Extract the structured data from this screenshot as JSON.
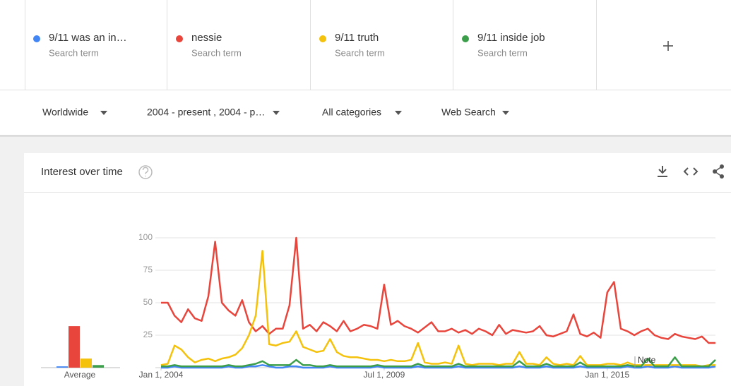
{
  "header": {
    "term_subtitle": "Search term"
  },
  "filters": [
    "Worldwide",
    "2004 - present , 2004 - p…",
    "All categories",
    "Web Search"
  ],
  "card": {
    "title": "Interest over time"
  },
  "chart_data": {
    "type": "line",
    "average_label": "Average",
    "annotation": "Note",
    "grid": true,
    "ylim": [
      0,
      100
    ],
    "yticks": [
      25,
      50,
      75,
      100
    ],
    "xlim": [
      "2004-01-01",
      "2017-09-01"
    ],
    "xticks": [
      {
        "value": "2004-01-01",
        "label": "Jan 1, 2004"
      },
      {
        "value": "2009-07-01",
        "label": "Jul 1, 2009"
      },
      {
        "value": "2015-01-01",
        "label": "Jan 1, 2015"
      }
    ],
    "x": [
      "2004-01-01",
      "2004-03-01",
      "2004-05-01",
      "2004-07-01",
      "2004-09-01",
      "2004-11-01",
      "2005-01-01",
      "2005-03-01",
      "2005-05-01",
      "2005-07-01",
      "2005-09-01",
      "2005-11-01",
      "2006-01-01",
      "2006-03-01",
      "2006-05-01",
      "2006-07-01",
      "2006-09-01",
      "2006-11-01",
      "2007-01-01",
      "2007-03-01",
      "2007-05-01",
      "2007-07-01",
      "2007-09-01",
      "2007-11-01",
      "2008-01-01",
      "2008-03-01",
      "2008-05-01",
      "2008-07-01",
      "2008-09-01",
      "2008-11-01",
      "2009-01-01",
      "2009-03-01",
      "2009-05-01",
      "2009-07-01",
      "2009-09-01",
      "2009-11-01",
      "2010-01-01",
      "2010-03-01",
      "2010-05-01",
      "2010-07-01",
      "2010-09-01",
      "2010-11-01",
      "2011-01-01",
      "2011-03-01",
      "2011-05-01",
      "2011-07-01",
      "2011-09-01",
      "2011-11-01",
      "2012-01-01",
      "2012-03-01",
      "2012-05-01",
      "2012-07-01",
      "2012-09-01",
      "2012-11-01",
      "2013-01-01",
      "2013-03-01",
      "2013-05-01",
      "2013-07-01",
      "2013-09-01",
      "2013-11-01",
      "2014-01-01",
      "2014-03-01",
      "2014-05-01",
      "2014-07-01",
      "2014-09-01",
      "2014-11-01",
      "2015-01-01",
      "2015-03-01",
      "2015-05-01",
      "2015-07-01",
      "2015-09-01",
      "2015-11-01",
      "2016-01-01",
      "2016-03-01",
      "2016-05-01",
      "2016-07-01",
      "2016-09-01",
      "2016-11-01",
      "2017-01-01",
      "2017-03-01",
      "2017-05-01",
      "2017-07-01",
      "2017-09-01"
    ],
    "series": [
      {
        "name": "9/11 was an in…",
        "color": "#4285f4",
        "average": 1,
        "values": [
          0,
          0,
          1,
          0,
          0,
          0,
          0,
          0,
          0,
          0,
          1,
          0,
          0,
          1,
          1,
          2,
          1,
          0,
          0,
          1,
          1,
          0,
          0,
          0,
          0,
          1,
          0,
          0,
          0,
          0,
          0,
          0,
          1,
          0,
          0,
          0,
          0,
          0,
          1,
          0,
          0,
          0,
          0,
          0,
          1,
          0,
          0,
          0,
          0,
          0,
          0,
          0,
          0,
          1,
          0,
          0,
          0,
          1,
          0,
          0,
          0,
          0,
          1,
          0,
          0,
          0,
          0,
          0,
          0,
          1,
          0,
          0,
          1,
          0,
          0,
          0,
          1,
          0,
          0,
          0,
          0,
          0,
          1
        ]
      },
      {
        "name": "nessie",
        "color": "#e8453c",
        "average": 32,
        "values": [
          50,
          50,
          40,
          35,
          45,
          38,
          36,
          55,
          97,
          50,
          44,
          40,
          52,
          35,
          28,
          32,
          26,
          30,
          30,
          48,
          100,
          30,
          33,
          28,
          35,
          32,
          28,
          36,
          28,
          30,
          33,
          32,
          30,
          64,
          33,
          36,
          32,
          30,
          27,
          31,
          35,
          28,
          28,
          30,
          27,
          29,
          26,
          30,
          28,
          25,
          33,
          26,
          29,
          28,
          27,
          28,
          32,
          25,
          24,
          26,
          28,
          41,
          26,
          24,
          27,
          23,
          58,
          66,
          30,
          28,
          25,
          28,
          30,
          25,
          23,
          22,
          26,
          24,
          23,
          22,
          24,
          19,
          19
        ]
      },
      {
        "name": "9/11 truth",
        "color": "#f4c20d",
        "average": 7,
        "values": [
          2,
          3,
          17,
          14,
          8,
          4,
          6,
          7,
          5,
          7,
          8,
          10,
          15,
          25,
          40,
          90,
          18,
          17,
          19,
          20,
          28,
          16,
          14,
          12,
          13,
          22,
          12,
          9,
          8,
          8,
          7,
          6,
          6,
          5,
          6,
          5,
          5,
          6,
          19,
          4,
          3,
          3,
          4,
          3,
          17,
          3,
          2,
          3,
          3,
          3,
          2,
          3,
          3,
          12,
          3,
          3,
          2,
          8,
          3,
          2,
          3,
          2,
          9,
          2,
          2,
          2,
          3,
          3,
          2,
          4,
          2,
          2,
          2,
          2,
          2,
          2,
          2,
          2,
          2,
          2,
          1,
          2,
          2
        ]
      },
      {
        "name": "9/11 inside job",
        "color": "#3c9e4a",
        "average": 2,
        "values": [
          1,
          1,
          2,
          1,
          1,
          1,
          1,
          1,
          1,
          1,
          2,
          1,
          1,
          2,
          3,
          5,
          2,
          2,
          2,
          2,
          6,
          2,
          2,
          1,
          1,
          2,
          1,
          1,
          1,
          1,
          1,
          1,
          2,
          1,
          1,
          1,
          1,
          1,
          3,
          1,
          1,
          1,
          1,
          1,
          3,
          1,
          1,
          1,
          1,
          1,
          1,
          1,
          1,
          5,
          1,
          1,
          1,
          3,
          1,
          1,
          1,
          1,
          4,
          1,
          1,
          1,
          1,
          1,
          1,
          2,
          1,
          1,
          7,
          1,
          1,
          1,
          8,
          1,
          1,
          1,
          1,
          1,
          6
        ]
      }
    ]
  }
}
